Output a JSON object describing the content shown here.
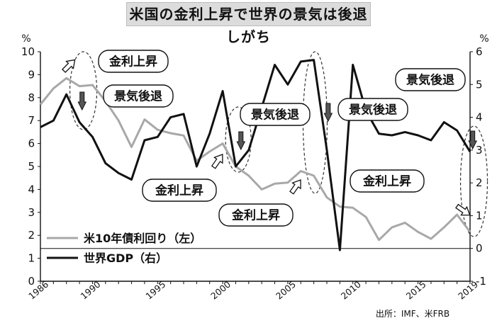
{
  "title": "米国の金利上昇で世界の景気は後退しがち",
  "source": "出所：IMF、米FRB",
  "chart_data": {
    "type": "line",
    "left_unit": "%",
    "right_unit": "%",
    "left_axis": {
      "min": 0,
      "max": 10,
      "ticks": [
        "0",
        "1",
        "2",
        "3",
        "4",
        "5",
        "6",
        "7",
        "8",
        "9",
        "10"
      ]
    },
    "right_axis": {
      "min": -1,
      "max": 6,
      "ticks": [
        "-1",
        "0",
        "1",
        "2",
        "3",
        "4",
        "5",
        "6"
      ]
    },
    "x_axis": {
      "min": 1986,
      "max": 2019,
      "ticks": [
        "1986",
        "1990",
        "1995",
        "2000",
        "2005",
        "2010",
        "2015",
        "2019"
      ]
    },
    "series": [
      {
        "name": "米10年債利回り（左）",
        "axis": "left",
        "color": "#a8a8a8",
        "x": [
          1986,
          1987,
          1988,
          1989,
          1990,
          1991,
          1992,
          1993,
          1994,
          1995,
          1996,
          1997,
          1998,
          1999,
          2000,
          2001,
          2002,
          2003,
          2004,
          2005,
          2006,
          2007,
          2008,
          2009,
          2010,
          2011,
          2012,
          2013,
          2014,
          2015,
          2016,
          2017,
          2018,
          2019
        ],
        "y": [
          7.7,
          8.4,
          8.85,
          8.5,
          8.55,
          7.85,
          7.0,
          5.85,
          7.05,
          6.6,
          6.45,
          6.35,
          5.25,
          5.65,
          6.0,
          5.0,
          4.6,
          4.0,
          4.25,
          4.3,
          4.8,
          4.6,
          3.65,
          3.25,
          3.2,
          2.8,
          1.8,
          2.35,
          2.55,
          2.15,
          1.85,
          2.35,
          2.9,
          2.15
        ]
      },
      {
        "name": "世界GDP（右）",
        "axis": "right",
        "color": "#111111",
        "x": [
          1986,
          1987,
          1988,
          1989,
          1990,
          1991,
          1992,
          1993,
          1994,
          1995,
          1996,
          1997,
          1998,
          1999,
          2000,
          2001,
          2002,
          2003,
          2004,
          2005,
          2006,
          2007,
          2008,
          2009,
          2010,
          2011,
          2012,
          2013,
          2014,
          2015,
          2016,
          2017,
          2018,
          2019
        ],
        "y": [
          3.7,
          3.9,
          4.7,
          3.85,
          3.4,
          2.6,
          2.3,
          2.1,
          3.3,
          3.4,
          4.0,
          4.1,
          2.5,
          3.5,
          4.8,
          2.5,
          3.0,
          4.3,
          5.6,
          5.0,
          5.7,
          5.75,
          3.0,
          -0.05,
          5.6,
          4.2,
          3.5,
          3.45,
          3.55,
          3.45,
          3.3,
          3.85,
          3.6,
          2.95
        ]
      }
    ],
    "annotations": [
      {
        "label": "金利上昇",
        "type": "rate-up"
      },
      {
        "label": "景気後退",
        "type": "recession"
      },
      {
        "label": "景気後退",
        "type": "recession"
      },
      {
        "label": "金利上昇",
        "type": "rate-up"
      },
      {
        "label": "金利上昇",
        "type": "rate-up"
      },
      {
        "label": "景気後退",
        "type": "recession"
      },
      {
        "label": "景気後退",
        "type": "recession"
      },
      {
        "label": "金利上昇",
        "type": "rate-up"
      }
    ]
  }
}
